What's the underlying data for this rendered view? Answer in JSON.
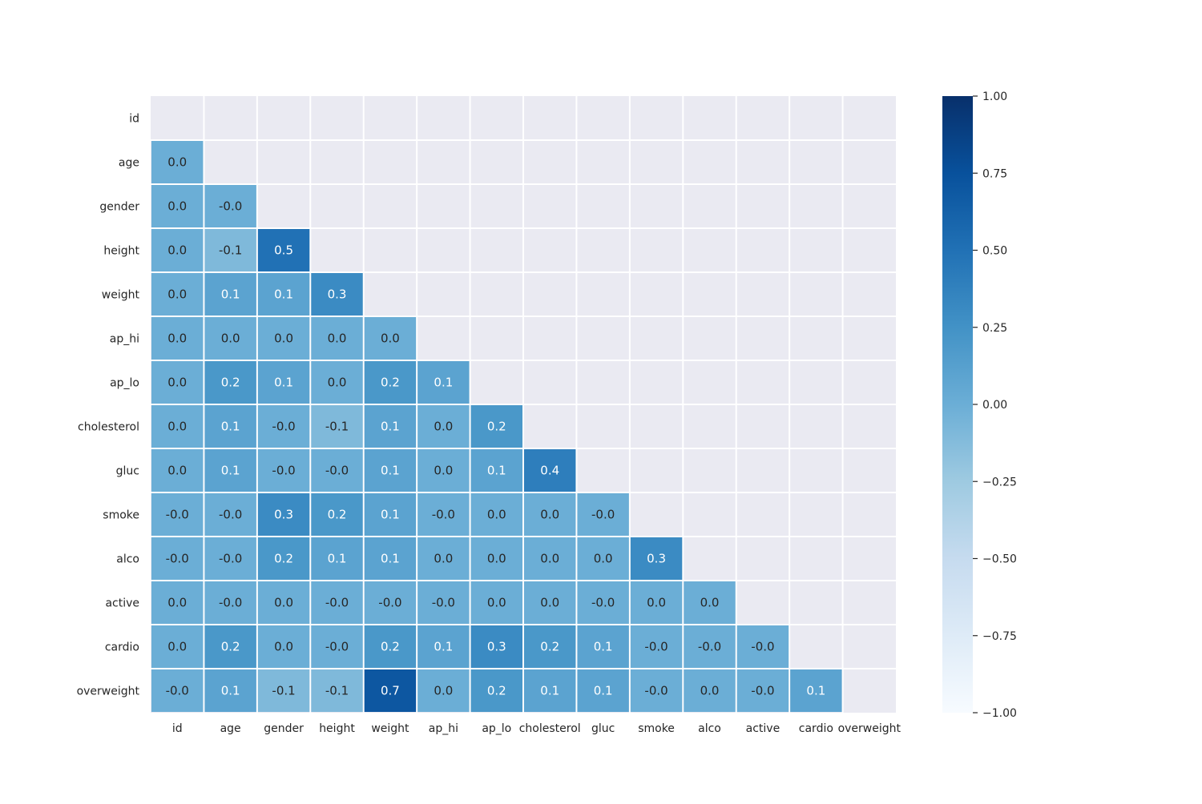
{
  "chart_data": {
    "type": "heatmap",
    "title": "",
    "xlabel": "",
    "ylabel": "",
    "mask": "upper-triangle-including-diagonal",
    "annotation_format": "one-decimal",
    "categories": [
      "id",
      "age",
      "gender",
      "height",
      "weight",
      "ap_hi",
      "ap_lo",
      "cholesterol",
      "gluc",
      "smoke",
      "alco",
      "active",
      "cardio",
      "overweight"
    ],
    "values": [
      [
        null,
        null,
        null,
        null,
        null,
        null,
        null,
        null,
        null,
        null,
        null,
        null,
        null,
        null
      ],
      [
        0.0,
        null,
        null,
        null,
        null,
        null,
        null,
        null,
        null,
        null,
        null,
        null,
        null,
        null
      ],
      [
        0.0,
        -0.0,
        null,
        null,
        null,
        null,
        null,
        null,
        null,
        null,
        null,
        null,
        null,
        null
      ],
      [
        0.0,
        -0.1,
        0.5,
        null,
        null,
        null,
        null,
        null,
        null,
        null,
        null,
        null,
        null,
        null
      ],
      [
        0.0,
        0.1,
        0.1,
        0.3,
        null,
        null,
        null,
        null,
        null,
        null,
        null,
        null,
        null,
        null
      ],
      [
        0.0,
        0.0,
        0.0,
        0.0,
        0.0,
        null,
        null,
        null,
        null,
        null,
        null,
        null,
        null,
        null
      ],
      [
        0.0,
        0.2,
        0.1,
        0.0,
        0.2,
        0.1,
        null,
        null,
        null,
        null,
        null,
        null,
        null,
        null
      ],
      [
        0.0,
        0.1,
        -0.0,
        -0.1,
        0.1,
        0.0,
        0.2,
        null,
        null,
        null,
        null,
        null,
        null,
        null
      ],
      [
        0.0,
        0.1,
        -0.0,
        -0.0,
        0.1,
        0.0,
        0.1,
        0.4,
        null,
        null,
        null,
        null,
        null,
        null
      ],
      [
        -0.0,
        -0.0,
        0.3,
        0.2,
        0.1,
        -0.0,
        0.0,
        0.0,
        -0.0,
        null,
        null,
        null,
        null,
        null
      ],
      [
        -0.0,
        -0.0,
        0.2,
        0.1,
        0.1,
        0.0,
        0.0,
        0.0,
        0.0,
        0.3,
        null,
        null,
        null,
        null
      ],
      [
        0.0,
        -0.0,
        0.0,
        -0.0,
        -0.0,
        -0.0,
        0.0,
        0.0,
        -0.0,
        0.0,
        0.0,
        null,
        null,
        null
      ],
      [
        0.0,
        0.2,
        0.0,
        -0.0,
        0.2,
        0.1,
        0.3,
        0.2,
        0.1,
        -0.0,
        -0.0,
        -0.0,
        null,
        null
      ],
      [
        -0.0,
        0.1,
        -0.1,
        -0.1,
        0.7,
        0.0,
        0.2,
        0.1,
        0.1,
        -0.0,
        0.0,
        -0.0,
        0.1,
        null
      ]
    ],
    "labels": [
      [
        null,
        null,
        null,
        null,
        null,
        null,
        null,
        null,
        null,
        null,
        null,
        null,
        null,
        null
      ],
      [
        "0.0",
        null,
        null,
        null,
        null,
        null,
        null,
        null,
        null,
        null,
        null,
        null,
        null,
        null
      ],
      [
        "0.0",
        "-0.0",
        null,
        null,
        null,
        null,
        null,
        null,
        null,
        null,
        null,
        null,
        null,
        null
      ],
      [
        "0.0",
        "-0.1",
        "0.5",
        null,
        null,
        null,
        null,
        null,
        null,
        null,
        null,
        null,
        null,
        null
      ],
      [
        "0.0",
        "0.1",
        "0.1",
        "0.3",
        null,
        null,
        null,
        null,
        null,
        null,
        null,
        null,
        null,
        null
      ],
      [
        "0.0",
        "0.0",
        "0.0",
        "0.0",
        "0.0",
        null,
        null,
        null,
        null,
        null,
        null,
        null,
        null,
        null
      ],
      [
        "0.0",
        "0.2",
        "0.1",
        "0.0",
        "0.2",
        "0.1",
        null,
        null,
        null,
        null,
        null,
        null,
        null,
        null
      ],
      [
        "0.0",
        "0.1",
        "-0.0",
        "-0.1",
        "0.1",
        "0.0",
        "0.2",
        null,
        null,
        null,
        null,
        null,
        null,
        null
      ],
      [
        "0.0",
        "0.1",
        "-0.0",
        "-0.0",
        "0.1",
        "0.0",
        "0.1",
        "0.4",
        null,
        null,
        null,
        null,
        null,
        null
      ],
      [
        "-0.0",
        "-0.0",
        "0.3",
        "0.2",
        "0.1",
        "-0.0",
        "0.0",
        "0.0",
        "-0.0",
        null,
        null,
        null,
        null,
        null
      ],
      [
        "-0.0",
        "-0.0",
        "0.2",
        "0.1",
        "0.1",
        "0.0",
        "0.0",
        "0.0",
        "0.0",
        "0.3",
        null,
        null,
        null,
        null
      ],
      [
        "0.0",
        "-0.0",
        "0.0",
        "-0.0",
        "-0.0",
        "-0.0",
        "0.0",
        "0.0",
        "-0.0",
        "0.0",
        "0.0",
        null,
        null,
        null
      ],
      [
        "0.0",
        "0.2",
        "0.0",
        "-0.0",
        "0.2",
        "0.1",
        "0.3",
        "0.2",
        "0.1",
        "-0.0",
        "-0.0",
        "-0.0",
        null,
        null
      ],
      [
        "-0.0",
        "0.1",
        "-0.1",
        "-0.1",
        "0.7",
        "0.0",
        "0.2",
        "0.1",
        "0.1",
        "-0.0",
        "0.0",
        "-0.0",
        "0.1",
        null
      ]
    ],
    "colorbar": {
      "vmin": -1.0,
      "vmax": 1.0,
      "ticks": [
        1.0,
        0.75,
        0.5,
        0.25,
        0.0,
        -0.25,
        -0.5,
        -0.75,
        -1.0
      ],
      "tick_labels": [
        "1.00",
        "0.75",
        "0.50",
        "0.25",
        "0.00",
        "−0.25",
        "−0.50",
        "−0.75",
        "−1.00"
      ],
      "colormap": "Blues"
    },
    "colors": {
      "mask_background": "#eaeaf2",
      "cell_border": "#ffffff",
      "text_light": "#ffffff",
      "text_dark": "#262626",
      "colormap_stops": [
        "#f7fbff",
        "#deebf7",
        "#c6dbef",
        "#9ecae1",
        "#6baed6",
        "#4292c6",
        "#2171b5",
        "#08519c",
        "#08306b"
      ]
    },
    "grid": false,
    "legend": "colorbar-right"
  }
}
